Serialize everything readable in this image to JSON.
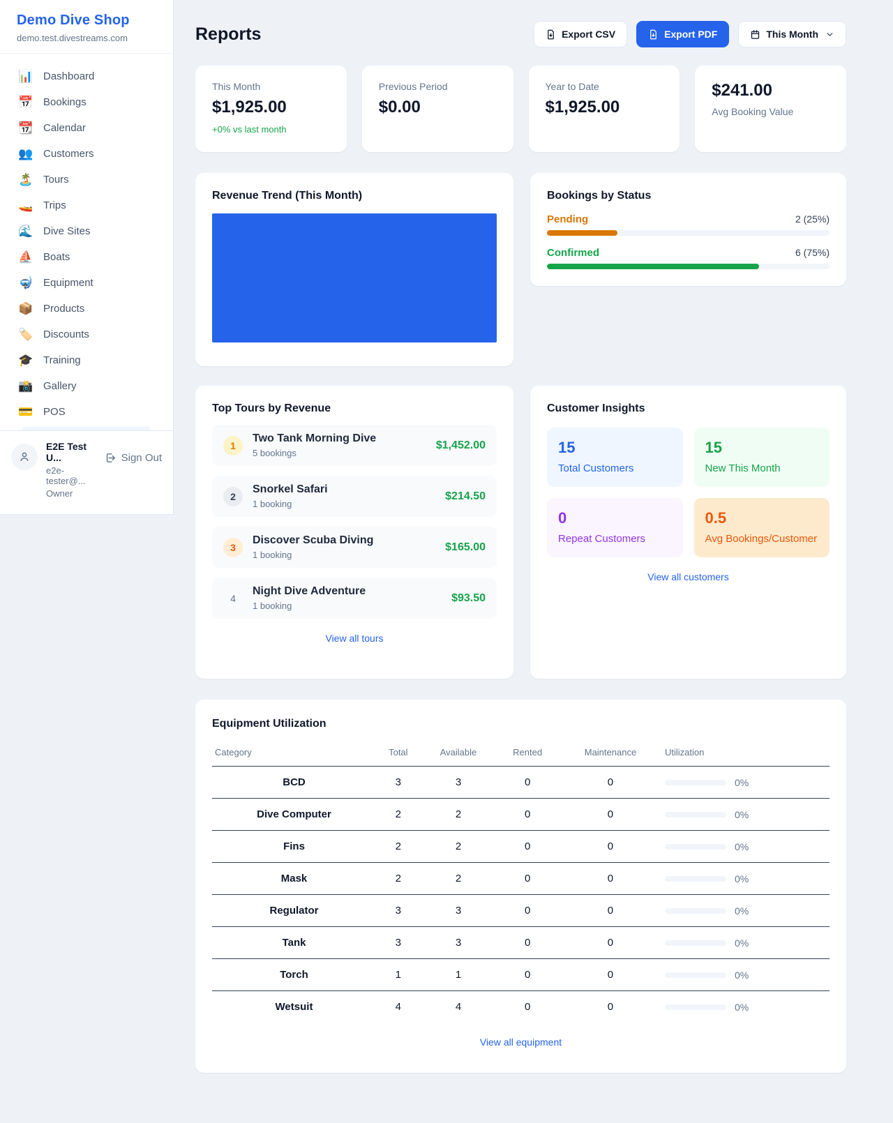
{
  "colors": {
    "accent_blue": "#2563eb",
    "green": "#16a34a",
    "amber": "#d97706",
    "orange": "#ea580c",
    "purple": "#9333ea",
    "page_bg": "#eef2f6"
  },
  "sidebar": {
    "brand": {
      "name": "Demo Dive Shop",
      "domain": "demo.test.divestreams.com"
    },
    "nav": [
      {
        "label": "Dashboard",
        "glyph": "📊"
      },
      {
        "label": "Bookings",
        "glyph": "📅"
      },
      {
        "label": "Calendar",
        "glyph": "📆"
      },
      {
        "label": "Customers",
        "glyph": "👥"
      },
      {
        "label": "Tours",
        "glyph": "🏝️"
      },
      {
        "label": "Trips",
        "glyph": "🚤"
      },
      {
        "label": "Dive Sites",
        "glyph": "🌊"
      },
      {
        "label": "Boats",
        "glyph": "⛵"
      },
      {
        "label": "Equipment",
        "glyph": "🤿"
      },
      {
        "label": "Products",
        "glyph": "📦"
      },
      {
        "label": "Discounts",
        "glyph": "🏷️"
      },
      {
        "label": "Training",
        "glyph": "🎓"
      },
      {
        "label": "Gallery",
        "glyph": "📸"
      },
      {
        "label": "POS",
        "glyph": "💳"
      }
    ],
    "user": {
      "name": "E2E Test U...",
      "email": "e2e-tester@...",
      "role": "Owner",
      "sign_out_label": "Sign Out"
    }
  },
  "header": {
    "title": "Reports",
    "export_csv_label": "Export CSV",
    "export_pdf_label": "Export PDF",
    "period_label": "This Month"
  },
  "stats": {
    "this_month": {
      "label": "This Month",
      "value": "$1,925.00",
      "delta": "+0% vs last month"
    },
    "previous_period": {
      "label": "Previous Period",
      "value": "$0.00"
    },
    "year_to_date": {
      "label": "Year to Date",
      "value": "$1,925.00"
    },
    "avg_booking": {
      "value": "$241.00",
      "label": "Avg Booking Value"
    }
  },
  "revenue_trend": {
    "title": "Revenue Trend (This Month)"
  },
  "bookings_by_status": {
    "title": "Bookings by Status",
    "items": [
      {
        "label": "Pending",
        "value": "2 (25%)",
        "pct": "25%"
      },
      {
        "label": "Confirmed",
        "value": "6 (75%)",
        "pct": "75%"
      }
    ]
  },
  "top_tours": {
    "title": "Top Tours by Revenue",
    "items": [
      {
        "rank": "1",
        "name": "Two Tank Morning Dive",
        "bookings": "5 bookings",
        "revenue": "$1,452.00"
      },
      {
        "rank": "2",
        "name": "Snorkel Safari",
        "bookings": "1 booking",
        "revenue": "$214.50"
      },
      {
        "rank": "3",
        "name": "Discover Scuba Diving",
        "bookings": "1 booking",
        "revenue": "$165.00"
      },
      {
        "rank": "4",
        "name": "Night Dive Adventure",
        "bookings": "1 booking",
        "revenue": "$93.50"
      }
    ],
    "view_all_label": "View all tours"
  },
  "customer_insights": {
    "title": "Customer Insights",
    "tiles": [
      {
        "value": "15",
        "label": "Total Customers"
      },
      {
        "value": "15",
        "label": "New This Month"
      },
      {
        "value": "0",
        "label": "Repeat Customers"
      },
      {
        "value": "0.5",
        "label": "Avg Bookings/Customer"
      }
    ],
    "view_all_label": "View all customers"
  },
  "equipment": {
    "title": "Equipment Utilization",
    "columns": [
      "Category",
      "Total",
      "Available",
      "Rented",
      "Maintenance",
      "Utilization"
    ],
    "rows": [
      {
        "category": "BCD",
        "total": "3",
        "available": "3",
        "rented": "0",
        "maintenance": "0",
        "utilization": "0%"
      },
      {
        "category": "Dive Computer",
        "total": "2",
        "available": "2",
        "rented": "0",
        "maintenance": "0",
        "utilization": "0%"
      },
      {
        "category": "Fins",
        "total": "2",
        "available": "2",
        "rented": "0",
        "maintenance": "0",
        "utilization": "0%"
      },
      {
        "category": "Mask",
        "total": "2",
        "available": "2",
        "rented": "0",
        "maintenance": "0",
        "utilization": "0%"
      },
      {
        "category": "Regulator",
        "total": "3",
        "available": "3",
        "rented": "0",
        "maintenance": "0",
        "utilization": "0%"
      },
      {
        "category": "Tank",
        "total": "3",
        "available": "3",
        "rented": "0",
        "maintenance": "0",
        "utilization": "0%"
      },
      {
        "category": "Torch",
        "total": "1",
        "available": "1",
        "rented": "0",
        "maintenance": "0",
        "utilization": "0%"
      },
      {
        "category": "Wetsuit",
        "total": "4",
        "available": "4",
        "rented": "0",
        "maintenance": "0",
        "utilization": "0%"
      }
    ],
    "view_all_label": "View all equipment"
  }
}
